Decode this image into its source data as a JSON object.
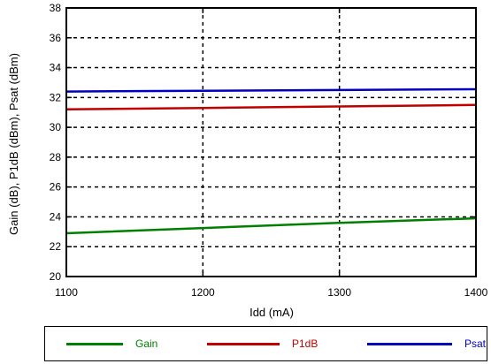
{
  "chart_data": {
    "type": "line",
    "title": "",
    "xlabel": "Idd (mA)",
    "ylabel": "Gain (dB), P1dB (dBm), Psat (dBm)",
    "xlim": [
      1100,
      1400
    ],
    "ylim": [
      20,
      38
    ],
    "xticks": [
      1100,
      1200,
      1300,
      1400
    ],
    "yticks": [
      20,
      22,
      24,
      26,
      28,
      30,
      32,
      34,
      36,
      38
    ],
    "grid": true,
    "legend_position": "bottom",
    "series": [
      {
        "name": "Gain",
        "color": "#008000",
        "x": [
          1100,
          1200,
          1300,
          1400
        ],
        "y": [
          22.9,
          23.25,
          23.6,
          23.9
        ]
      },
      {
        "name": "P1dB",
        "color": "#c00000",
        "x": [
          1100,
          1200,
          1300,
          1400
        ],
        "y": [
          31.2,
          31.3,
          31.4,
          31.5
        ]
      },
      {
        "name": "Psat",
        "color": "#0000c0",
        "x": [
          1100,
          1200,
          1300,
          1400
        ],
        "y": [
          32.4,
          32.45,
          32.5,
          32.55
        ]
      }
    ]
  }
}
